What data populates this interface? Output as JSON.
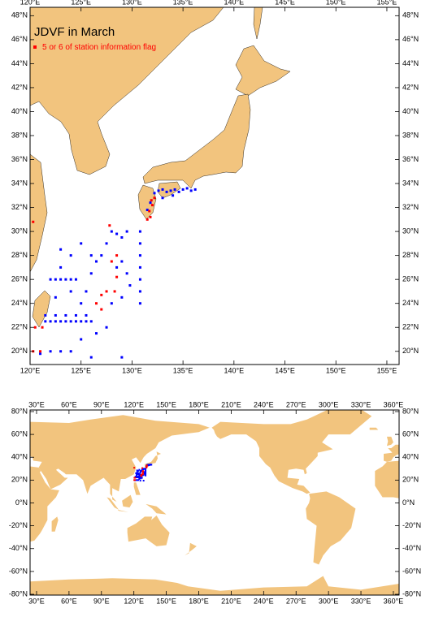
{
  "map1": {
    "title": "JDVF in March",
    "legend": "5 or 6 of station information flag",
    "xlim": [
      120,
      156.2
    ],
    "ylim": [
      18.9,
      48.7
    ],
    "xticks": [
      {
        "value": 120,
        "label": "120°E"
      },
      {
        "value": 125,
        "label": "125°E"
      },
      {
        "value": 130,
        "label": "130°E"
      },
      {
        "value": 135,
        "label": "135°E"
      },
      {
        "value": 140,
        "label": "140°E"
      },
      {
        "value": 145,
        "label": "145°E"
      },
      {
        "value": 150,
        "label": "150°E"
      },
      {
        "value": 155,
        "label": "155°E"
      }
    ],
    "yticks": [
      {
        "value": 20,
        "label": "20°N"
      },
      {
        "value": 22,
        "label": "22°N"
      },
      {
        "value": 24,
        "label": "24°N"
      },
      {
        "value": 26,
        "label": "26°N"
      },
      {
        "value": 28,
        "label": "28°N"
      },
      {
        "value": 30,
        "label": "30°N"
      },
      {
        "value": 32,
        "label": "32°N"
      },
      {
        "value": 34,
        "label": "34°N"
      },
      {
        "value": 36,
        "label": "36°N"
      },
      {
        "value": 38,
        "label": "38°N"
      },
      {
        "value": 40,
        "label": "40°N"
      },
      {
        "value": 42,
        "label": "42°N"
      },
      {
        "value": 44,
        "label": "44°N"
      },
      {
        "value": 46,
        "label": "46°N"
      },
      {
        "value": 48,
        "label": "48°N"
      }
    ],
    "land_color": "#f2c47e",
    "stations": [
      {
        "color": "#0000ff",
        "lon": [
          132.2,
          132.6,
          133,
          133.4,
          133.8,
          134.2,
          134.6,
          135,
          135.4,
          135.8,
          136.2,
          133,
          134,
          131.8,
          131.5,
          130.8,
          130.8,
          130.8,
          130.8,
          130.8,
          130.8,
          130.8,
          121.5,
          122,
          122.5,
          123,
          123.5,
          124,
          124.5,
          125,
          125.5,
          126,
          121.5,
          122.5,
          123.5,
          124.5,
          125.5,
          122,
          122.5,
          123,
          123.5,
          124,
          124.5,
          123,
          123,
          122.5,
          124,
          125,
          125.5,
          126,
          126.5,
          127,
          127.5,
          128,
          128.5,
          129,
          129.5,
          129,
          128.5,
          129.5,
          129.8,
          129,
          128,
          127.5,
          126.5,
          125,
          122,
          123,
          124,
          126,
          121,
          129,
          124,
          125,
          126
        ],
        "lat": [
          33.2,
          33.4,
          33.5,
          33.3,
          33.4,
          33.5,
          33.3,
          33.5,
          33.6,
          33.4,
          33.5,
          32.8,
          33,
          32.4,
          31.8,
          24,
          25,
          26,
          27,
          28,
          29,
          30,
          22.5,
          22.5,
          22.5,
          22.5,
          22.5,
          22.5,
          22.5,
          22.5,
          22.5,
          22.5,
          23,
          23,
          23,
          23,
          23,
          26,
          26,
          26,
          26,
          26,
          26,
          28.5,
          27,
          24.5,
          25,
          24,
          25,
          26.5,
          27.5,
          28,
          29,
          30,
          29.8,
          29.5,
          30,
          27.5,
          27,
          26.5,
          25.5,
          24.5,
          24,
          22,
          21.5,
          21,
          20,
          20,
          20,
          19.5,
          19.8,
          19.5,
          28,
          29,
          28
        ]
      },
      {
        "color": "#ff0000",
        "lon": [
          120.3,
          121,
          120.5,
          121.2,
          120.3,
          127,
          127,
          127.5,
          128.3,
          128,
          128.5,
          128.5,
          127.8,
          131.8,
          131.7,
          132,
          131.9,
          132.2,
          131.5,
          126.5
        ],
        "lat": [
          20,
          20,
          22,
          22,
          30.8,
          23.5,
          24.7,
          25,
          25,
          27.5,
          26.2,
          28,
          30.5,
          31.2,
          31.7,
          32.2,
          32.6,
          32.8,
          31,
          24
        ]
      }
    ]
  },
  "map2": {
    "xlim": [
      24,
      365.3
    ],
    "ylim": [
      -80.7,
      81.4
    ],
    "xticks": [
      {
        "value": 30,
        "label": "30°E"
      },
      {
        "value": 60,
        "label": "60°E"
      },
      {
        "value": 90,
        "label": "90°E"
      },
      {
        "value": 120,
        "label": "120°E"
      },
      {
        "value": 150,
        "label": "150°E"
      },
      {
        "value": 180,
        "label": "180°E"
      },
      {
        "value": 210,
        "label": "210°E"
      },
      {
        "value": 240,
        "label": "240°E"
      },
      {
        "value": 270,
        "label": "270°E"
      },
      {
        "value": 300,
        "label": "300°E"
      },
      {
        "value": 330,
        "label": "330°E"
      },
      {
        "value": 360,
        "label": "360°E"
      }
    ],
    "yticks": [
      {
        "value": -80,
        "label": "-80°N"
      },
      {
        "value": -60,
        "label": "-60°N"
      },
      {
        "value": -40,
        "label": "-40°N"
      },
      {
        "value": -20,
        "label": "-20°N"
      },
      {
        "value": 0,
        "label": "0°N"
      },
      {
        "value": 20,
        "label": "20°N"
      },
      {
        "value": 40,
        "label": "40°N"
      },
      {
        "value": 60,
        "label": "60°N"
      },
      {
        "value": 80,
        "label": "80°N"
      }
    ]
  }
}
